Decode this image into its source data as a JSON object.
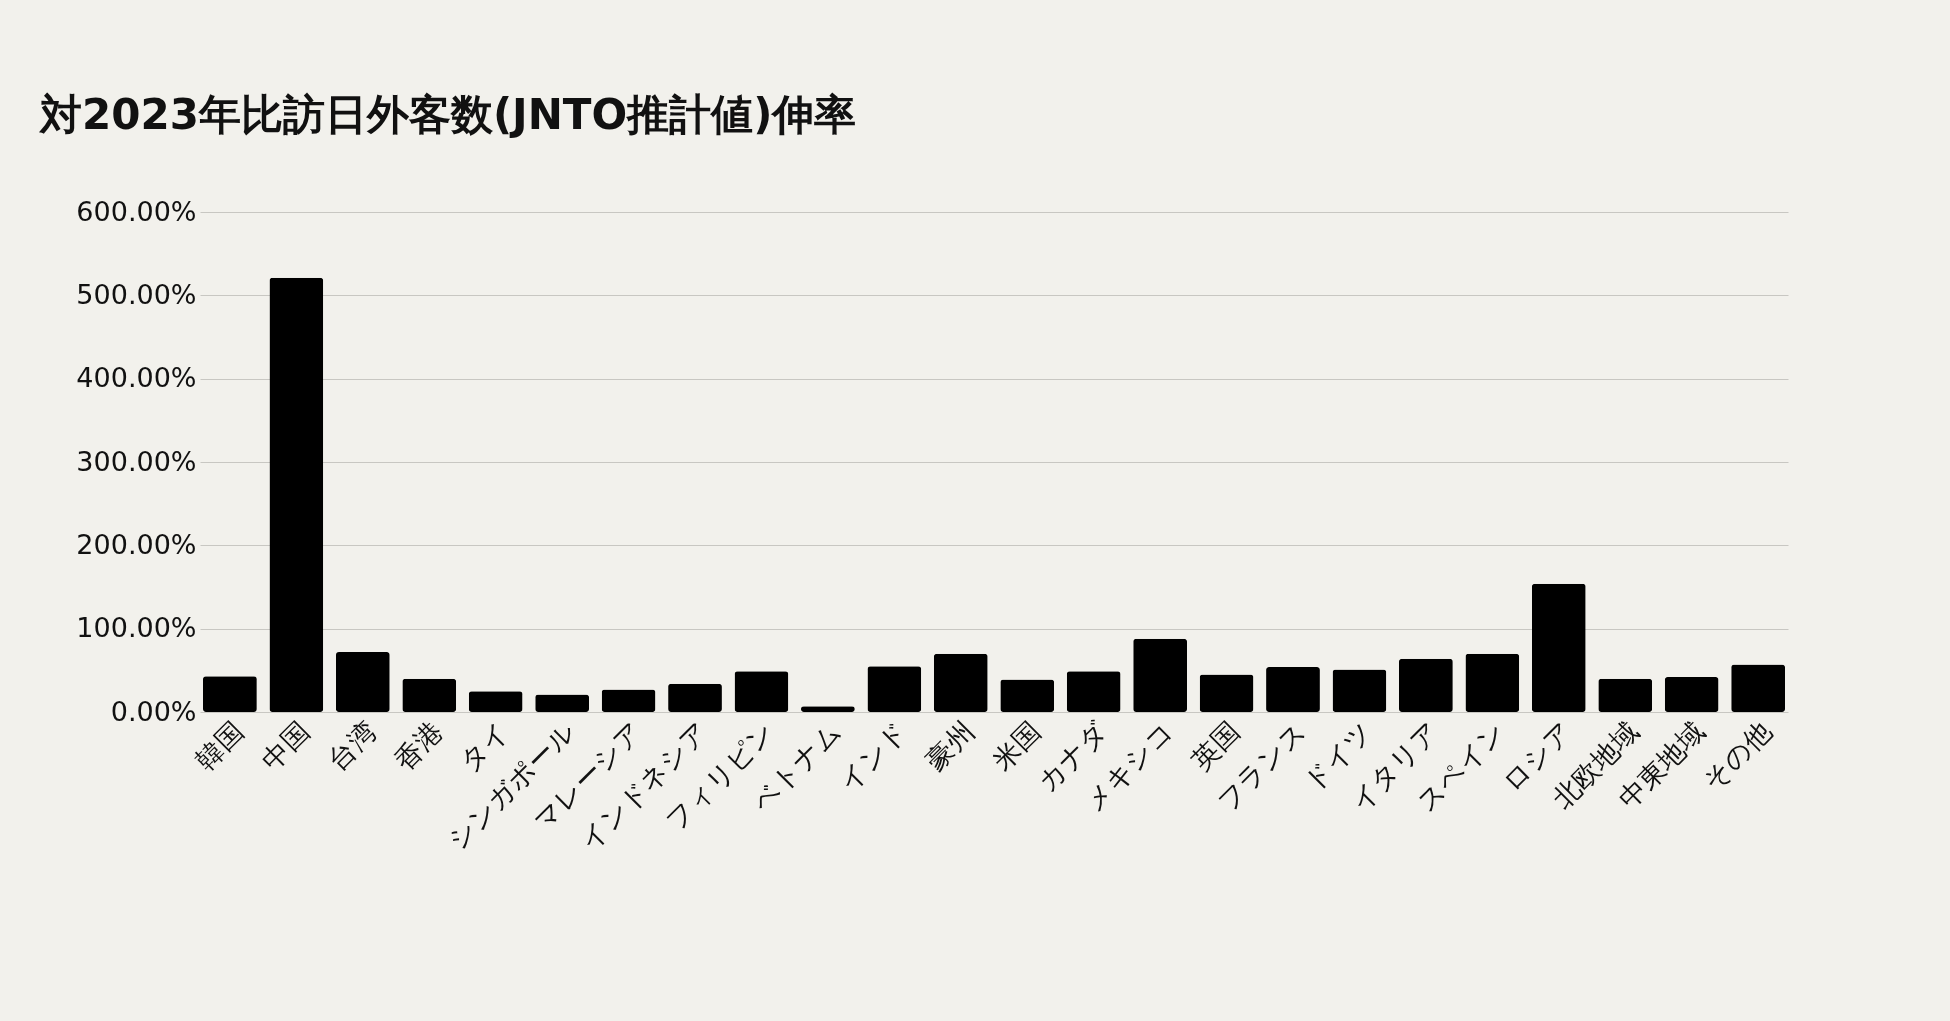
{
  "chart_data": {
    "type": "bar",
    "title": "対2023年比訪日外客数(JNTO推計値)伸率",
    "categories": [
      "韓国",
      "中国",
      "台湾",
      "香港",
      "タイ",
      "シンガポール",
      "マレーシア",
      "インドネシア",
      "フィリピン",
      "ベトナム",
      "インド",
      "豪州",
      "米国",
      "カナダ",
      "メキシコ",
      "英国",
      "フランス",
      "ドイツ",
      "イタリア",
      "スペイン",
      "ロシア",
      "北欧地域",
      "中東地域",
      "その他"
    ],
    "values": [
      43,
      521,
      72,
      40,
      25,
      21,
      27,
      34,
      49,
      7,
      55,
      70,
      39,
      49,
      88,
      45,
      54,
      51,
      64,
      70,
      154,
      40,
      42,
      57
    ],
    "color": "#000000",
    "ylim": [
      0,
      600
    ],
    "yticks": [
      {
        "value": 0,
        "label": "0.00%"
      },
      {
        "value": 100,
        "label": "100.00%"
      },
      {
        "value": 200,
        "label": "200.00%"
      },
      {
        "value": 300,
        "label": "300.00%"
      },
      {
        "value": 400,
        "label": "400.00%"
      },
      {
        "value": 500,
        "label": "500.00%"
      },
      {
        "value": 600,
        "label": "600.00%"
      }
    ],
    "grid": "y"
  }
}
